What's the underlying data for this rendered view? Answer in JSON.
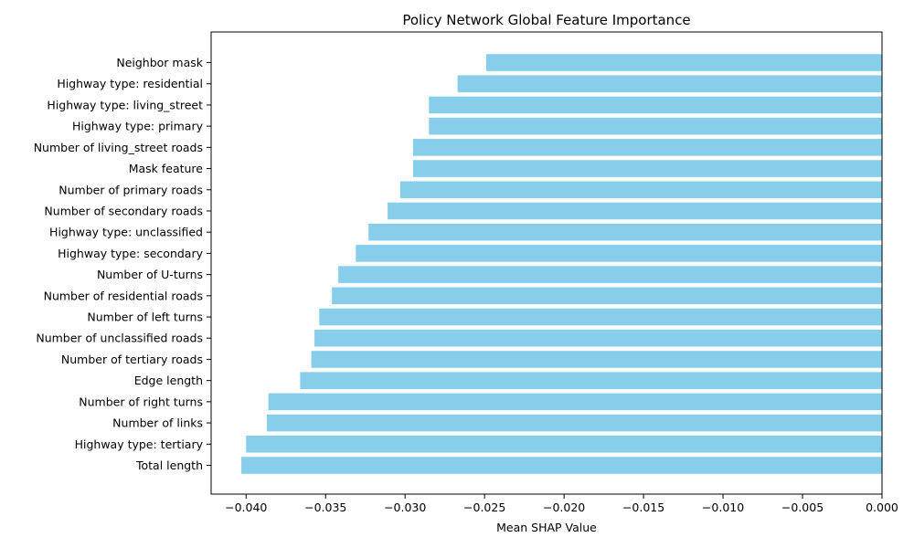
{
  "chart_data": {
    "type": "bar",
    "orientation": "horizontal",
    "title": "Policy Network Global Feature Importance",
    "xlabel": "Mean SHAP Value",
    "ylabel": "",
    "xlim": [
      -0.0422,
      0.0
    ],
    "xticks": [
      -0.04,
      -0.035,
      -0.03,
      -0.025,
      -0.02,
      -0.015,
      -0.01,
      -0.005,
      0.0
    ],
    "xtick_labels": [
      "−0.040",
      "−0.035",
      "−0.030",
      "−0.025",
      "−0.020",
      "−0.015",
      "−0.010",
      "−0.005",
      "0.000"
    ],
    "grid": false,
    "bar_color": "#87ceeb",
    "categories": [
      "Neighbor mask",
      "Highway type: residential",
      "Highway type: living_street",
      "Highway type: primary",
      "Number of living_street roads",
      "Mask feature",
      "Number of primary roads",
      "Number of secondary roads",
      "Highway type: unclassified",
      "Highway type: secondary",
      "Number of U-turns",
      "Number of residential roads",
      "Number of left turns",
      "Number of unclassified roads",
      "Number of tertiary roads",
      "Edge length",
      "Number of right turns",
      "Number of links",
      "Highway type: tertiary",
      "Total length"
    ],
    "values": [
      -0.0249,
      -0.0267,
      -0.0285,
      -0.0285,
      -0.0295,
      -0.0295,
      -0.0303,
      -0.0311,
      -0.0323,
      -0.0331,
      -0.0342,
      -0.0346,
      -0.0354,
      -0.0357,
      -0.0359,
      -0.0366,
      -0.0386,
      -0.0387,
      -0.04,
      -0.0403
    ]
  }
}
